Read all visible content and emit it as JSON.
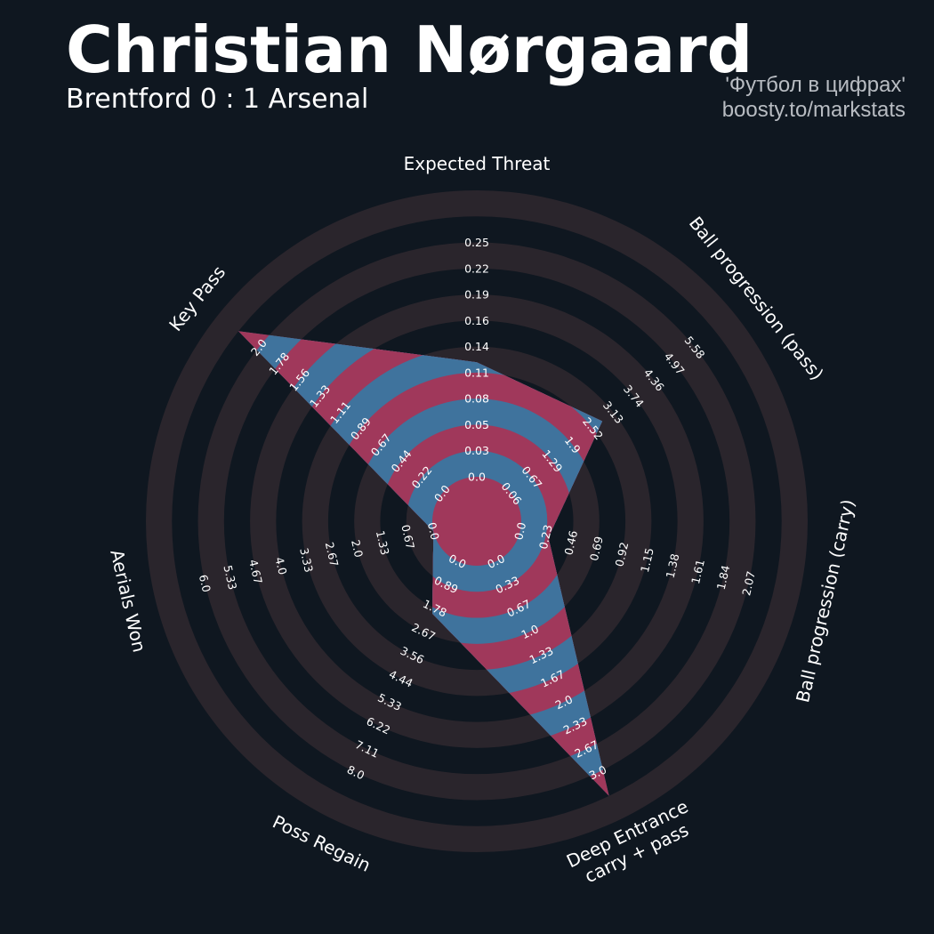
{
  "header": {
    "title": "Christian Nørgaard",
    "subtitle": "Brentford 0 : 1 Arsenal",
    "credit_line1": "'Футбол в цифрах'",
    "credit_line2": "boosty.to/markstats"
  },
  "colors": {
    "background": "#0f1720",
    "ring": "#2a252c",
    "player_fill_a": "#a0385b",
    "player_fill_b": "#3f739d",
    "text": "#ffffff",
    "credit": "#b8bcc2"
  },
  "chart_data": {
    "type": "radar",
    "title": "Christian Nørgaard",
    "subtitle": "Brentford 0 : 1 Arsenal",
    "parameters": [
      "Expected Threat",
      "Ball progression (pass)",
      "Ball progression (carry)",
      "Deep Entrance\ncarry + pass",
      "Poss Regain",
      "Aerials Won",
      "Key Pass"
    ],
    "values": [
      0.11,
      2.52,
      0.23,
      3.0,
      1.78,
      0.0,
      2.0
    ],
    "ranges": [
      [
        0.0,
        0.25
      ],
      [
        0.06,
        5.58
      ],
      [
        0.0,
        2.07
      ],
      [
        0.0,
        3.0
      ],
      [
        0.0,
        8.0
      ],
      [
        0.0,
        6.0
      ],
      [
        0.0,
        2.0
      ]
    ],
    "tick_labels": [
      [
        "0.0",
        "0.03",
        "0.05",
        "0.08",
        "0.11",
        "0.14",
        "0.16",
        "0.19",
        "0.22",
        "0.25"
      ],
      [
        "0.06",
        "0.67",
        "1.29",
        "1.9",
        "2.52",
        "3.13",
        "3.74",
        "4.36",
        "4.97",
        "5.58"
      ],
      [
        "0.0",
        "0.23",
        "0.46",
        "0.69",
        "0.92",
        "1.15",
        "1.38",
        "1.61",
        "1.84",
        "2.07"
      ],
      [
        "0.0",
        "0.33",
        "0.67",
        "1.0",
        "1.33",
        "1.67",
        "2.0",
        "2.33",
        "2.67",
        "3.0"
      ],
      [
        "0.0",
        "0.89",
        "1.78",
        "2.67",
        "3.56",
        "4.44",
        "5.33",
        "6.22",
        "7.11",
        "8.0"
      ],
      [
        "0.0",
        "0.67",
        "1.33",
        "2.0",
        "2.67",
        "3.33",
        "4.0",
        "4.67",
        "5.33",
        "6.0"
      ],
      [
        "0.0",
        "0.22",
        "0.44",
        "0.67",
        "0.89",
        "1.11",
        "1.33",
        "1.56",
        "1.78",
        "2.0"
      ]
    ]
  }
}
